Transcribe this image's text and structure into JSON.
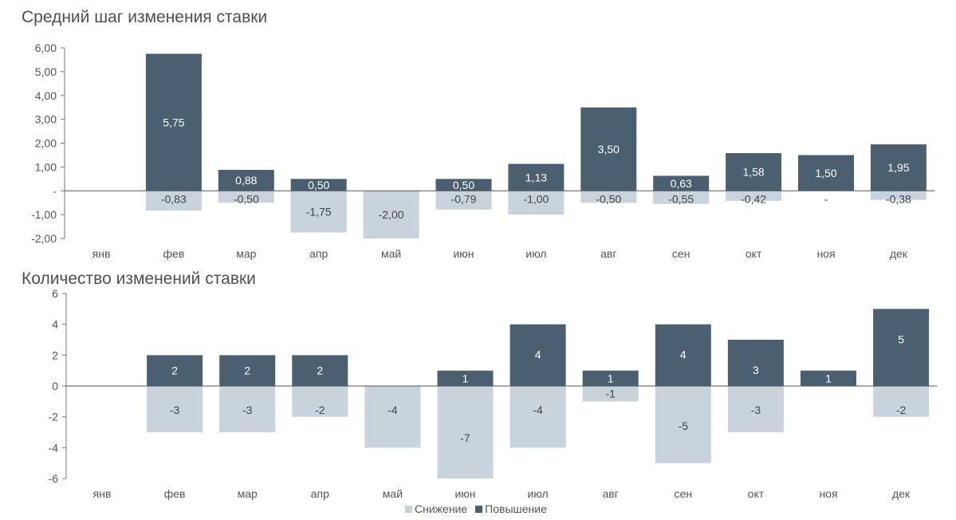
{
  "colors": {
    "increase": "#4a6070",
    "decrease": "#c8d3dc",
    "axis": "#777777",
    "text": "#555555"
  },
  "legend": {
    "decrease": "Снижение",
    "increase": "Повышение"
  },
  "chart_data": [
    {
      "type": "bar",
      "title": "Средний шаг изменения ставки",
      "categories": [
        "янв",
        "фев",
        "мар",
        "апр",
        "май",
        "июн",
        "июл",
        "авг",
        "сен",
        "окт",
        "ноя",
        "дек"
      ],
      "ylim": [
        -2,
        6
      ],
      "yticks": [
        "6,00",
        "5,00",
        "4,00",
        "3,00",
        "2,00",
        "1,00",
        "-",
        "-1,00",
        "-2,00"
      ],
      "series": [
        {
          "name": "Повышение",
          "values": [
            0,
            5.75,
            0.88,
            0.5,
            0,
            0.5,
            1.13,
            3.5,
            0.63,
            1.58,
            1.5,
            1.95
          ],
          "labels": [
            "",
            "5,75",
            "0,88",
            "0,50",
            "",
            "0,50",
            "1,13",
            "3,50",
            "0,63",
            "1,58",
            "1,50",
            "1,95"
          ]
        },
        {
          "name": "Снижение",
          "values": [
            0,
            -0.83,
            -0.5,
            -1.75,
            -2.0,
            -0.79,
            -1.0,
            -0.5,
            -0.55,
            -0.42,
            0,
            -0.38
          ],
          "labels": [
            "",
            "-0,83",
            "-0,50",
            "-1,75",
            "-2,00",
            "-0,79",
            "-1,00",
            "-0,50",
            "-0,55",
            "-0,42",
            "-",
            "-0,38"
          ]
        }
      ]
    },
    {
      "type": "bar",
      "title": "Количество изменений ставки",
      "categories": [
        "янв",
        "фев",
        "мар",
        "апр",
        "май",
        "июн",
        "июл",
        "авг",
        "сен",
        "окт",
        "ноя",
        "дек"
      ],
      "ylim": [
        -6,
        6
      ],
      "yticks": [
        "6",
        "4",
        "2",
        "0",
        "-2",
        "-4",
        "-6"
      ],
      "series": [
        {
          "name": "Повышение",
          "values": [
            0,
            2,
            2,
            2,
            0,
            1,
            4,
            1,
            4,
            3,
            1,
            5
          ],
          "labels": [
            "",
            "2",
            "2",
            "2",
            "",
            "1",
            "4",
            "1",
            "4",
            "3",
            "1",
            "5"
          ]
        },
        {
          "name": "Снижение",
          "values": [
            0,
            -3,
            -3,
            -2,
            -4,
            -7,
            -4,
            -1,
            -5,
            -3,
            0,
            -2
          ],
          "labels": [
            "",
            "-3",
            "-3",
            "-2",
            "-4",
            "-7",
            "-4",
            "-1",
            "-5",
            "-3",
            "",
            "-2"
          ]
        }
      ]
    }
  ]
}
